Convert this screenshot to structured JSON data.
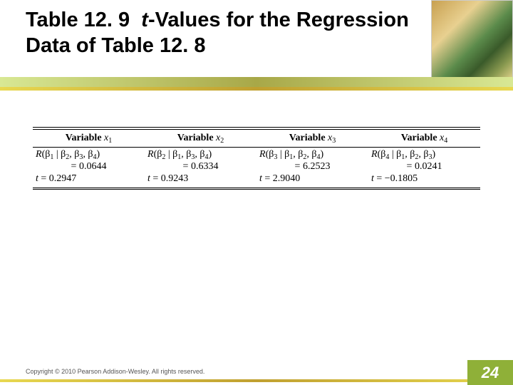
{
  "title": {
    "prefix": "Table 12. 9",
    "italic_word": "t",
    "rest": "-Values for the Regression  Data of Table 12. 8"
  },
  "table": {
    "columns": [
      {
        "label": "Variable",
        "var": "x",
        "sub": "1",
        "R_expr": {
          "lhs_sub": "1",
          "given": [
            "2",
            "3",
            "4"
          ]
        },
        "value": "= 0.0644",
        "t_text": "t = 0.2947"
      },
      {
        "label": "Variable",
        "var": "x",
        "sub": "2",
        "R_expr": {
          "lhs_sub": "2",
          "given": [
            "1",
            "3",
            "4"
          ]
        },
        "value": "= 0.6334",
        "t_text": "t = 0.9243"
      },
      {
        "label": "Variable",
        "var": "x",
        "sub": "3",
        "R_expr": {
          "lhs_sub": "3",
          "given": [
            "1",
            "2",
            "4"
          ]
        },
        "value": "= 6.2523",
        "t_text": "t = 2.9040"
      },
      {
        "label": "Variable",
        "var": "x",
        "sub": "4",
        "R_expr": {
          "lhs_sub": "4",
          "given": [
            "1",
            "2",
            "3"
          ]
        },
        "value": "= 0.0241",
        "t_text": "t = −0.1805"
      }
    ],
    "rule_colors": {
      "top": "#000000",
      "thin": "#000000"
    },
    "font_size_pt": 14,
    "background_color": "#ffffff"
  },
  "footer": {
    "copyright": "Copyright © 2010 Pearson Addison-Wesley. All rights reserved.",
    "page_number": "24",
    "page_box_color": "#8fb038",
    "page_text_color": "#ffffff"
  },
  "decoration": {
    "bar1_gradient": [
      "#d8e894",
      "#a8a848",
      "#d8e894"
    ],
    "bar2_gradient": [
      "#e8d850",
      "#c0a030",
      "#e8d850"
    ]
  }
}
